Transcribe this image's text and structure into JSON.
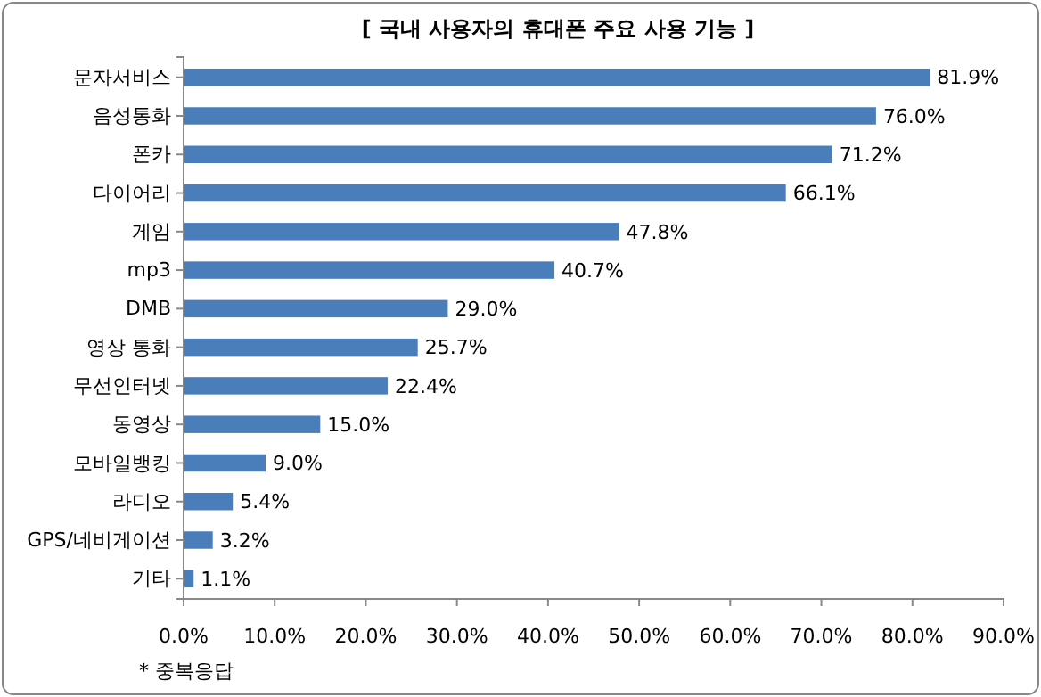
{
  "chart_data": {
    "type": "bar",
    "orientation": "horizontal",
    "title": "[ 국내 사용자의 휴대폰 주요 사용 기능 ]",
    "categories": [
      "문자서비스",
      "음성통화",
      "폰카",
      "다이어리",
      "게임",
      "mp3",
      "DMB",
      "영상 통화",
      "무선인터넷",
      "동영상",
      "모바일뱅킹",
      "라디오",
      "GPS/네비게이션",
      "기타"
    ],
    "values": [
      81.9,
      76.0,
      71.2,
      66.1,
      47.8,
      40.7,
      29.0,
      25.7,
      22.4,
      15.0,
      9.0,
      5.4,
      3.2,
      1.1
    ],
    "value_labels": [
      "81.9%",
      "76.0%",
      "71.2%",
      "66.1%",
      "47.8%",
      "40.7%",
      "29.0%",
      "25.7%",
      "22.4%",
      "15.0%",
      "9.0%",
      "5.4%",
      "3.2%",
      "1.1%"
    ],
    "color": "#4a7ebb",
    "xlim": [
      0,
      90
    ],
    "xticks": [
      {
        "value": 0,
        "label": "0.0%"
      },
      {
        "value": 10,
        "label": "10.0%"
      },
      {
        "value": 20,
        "label": "20.0%"
      },
      {
        "value": 30,
        "label": "30.0%"
      },
      {
        "value": 40,
        "label": "40.0%"
      },
      {
        "value": 50,
        "label": "50.0%"
      },
      {
        "value": 60,
        "label": "60.0%"
      },
      {
        "value": 70,
        "label": "70.0%"
      },
      {
        "value": 80,
        "label": "80.0%"
      },
      {
        "value": 90,
        "label": "90.0%"
      }
    ],
    "grid": false,
    "annotations": [
      "* 중복응답"
    ]
  }
}
